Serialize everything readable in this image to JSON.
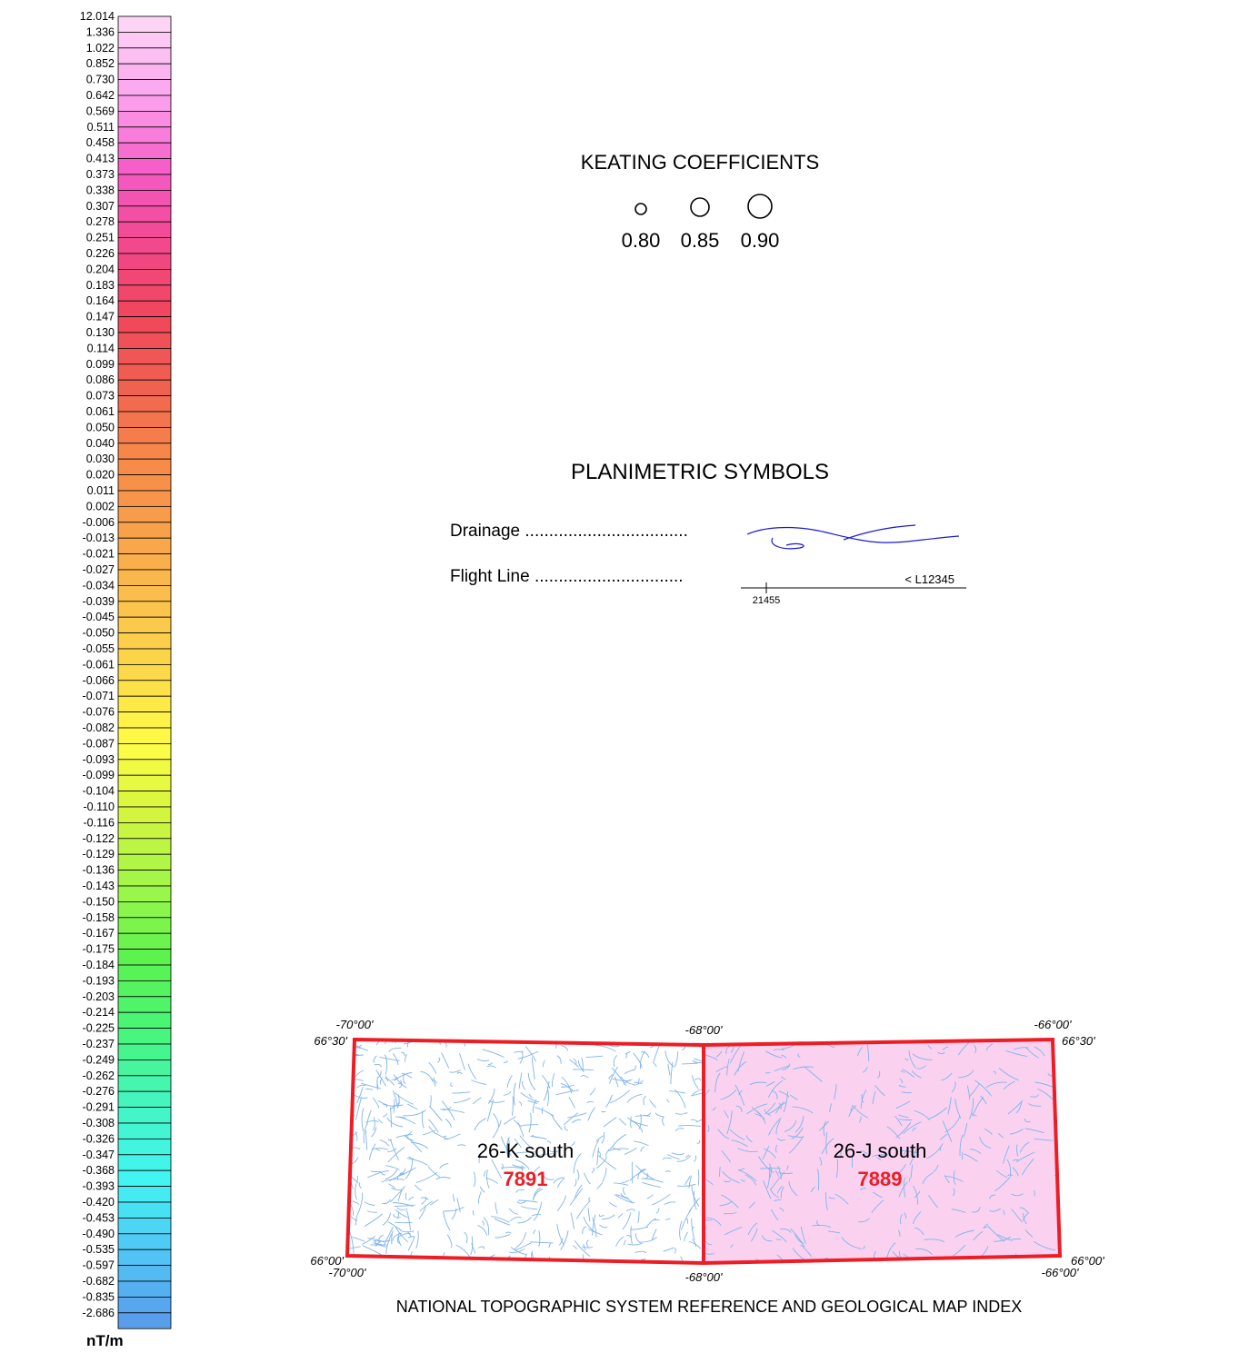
{
  "color_scale": {
    "units": "nT/m",
    "labels": [
      "12.014",
      "1.336",
      "1.022",
      "0.852",
      "0.730",
      "0.642",
      "0.569",
      "0.511",
      "0.458",
      "0.413",
      "0.373",
      "0.338",
      "0.307",
      "0.278",
      "0.251",
      "0.226",
      "0.204",
      "0.183",
      "0.164",
      "0.147",
      "0.130",
      "0.114",
      "0.099",
      "0.086",
      "0.073",
      "0.061",
      "0.050",
      "0.040",
      "0.030",
      "0.020",
      "0.011",
      "0.002",
      "-0.006",
      "-0.013",
      "-0.021",
      "-0.027",
      "-0.034",
      "-0.039",
      "-0.045",
      "-0.050",
      "-0.055",
      "-0.061",
      "-0.066",
      "-0.071",
      "-0.076",
      "-0.082",
      "-0.087",
      "-0.093",
      "-0.099",
      "-0.104",
      "-0.110",
      "-0.116",
      "-0.122",
      "-0.129",
      "-0.136",
      "-0.143",
      "-0.150",
      "-0.158",
      "-0.167",
      "-0.175",
      "-0.184",
      "-0.193",
      "-0.203",
      "-0.214",
      "-0.225",
      "-0.237",
      "-0.249",
      "-0.262",
      "-0.276",
      "-0.291",
      "-0.308",
      "-0.326",
      "-0.347",
      "-0.368",
      "-0.393",
      "-0.420",
      "-0.453",
      "-0.490",
      "-0.535",
      "-0.597",
      "-0.682",
      "-0.835",
      "-2.686"
    ],
    "color_stops": [
      "#fcd4f6",
      "#fca4ee",
      "#f65cc8",
      "#f24890",
      "#f0465c",
      "#f06050",
      "#f7894a",
      "#f7a04a",
      "#fbc14c",
      "#fcd94a",
      "#fffd45",
      "#d2f540",
      "#9ef64a",
      "#5bf24e",
      "#48f57a",
      "#45f5c3",
      "#42f5f2",
      "#50c8f5",
      "#589eeb"
    ]
  },
  "keating": {
    "title": "KEATING COEFFICIENTS",
    "values": [
      "0.80",
      "0.85",
      "0.90"
    ]
  },
  "planimetric": {
    "title": "PLANIMETRIC SYMBOLS",
    "drainage_label": "Drainage ..................................",
    "flight_label": "Flight Line ...............................",
    "flight_line_id": "< L12345",
    "fiducial": "21455",
    "drainage_color": "#1a1ad8"
  },
  "map_index": {
    "caption": "NATIONAL TOPOGRAPHIC SYSTEM REFERENCE AND GEOLOGICAL MAP INDEX",
    "border_color": "#ee1c24",
    "contour_color": "#7fb4ea",
    "sheets": [
      {
        "name": "26-K south",
        "number": "7891",
        "fill": "#ffffff"
      },
      {
        "name": "26-J south",
        "number": "7889",
        "fill": "#fad2f0"
      }
    ],
    "coords": {
      "top_left_lon": "-70°00'",
      "top_left_lat": "66°30'",
      "top_mid_lon": "-68°00'",
      "top_right_lon": "-66°00'",
      "top_right_lat": "66°30'",
      "bottom_left_lat": "66°00'",
      "bottom_left_lon": "-70°00'",
      "bottom_mid_lon": "-68°00'",
      "bottom_right_lat": "66°00'",
      "bottom_right_lon": "-66°00'"
    }
  }
}
